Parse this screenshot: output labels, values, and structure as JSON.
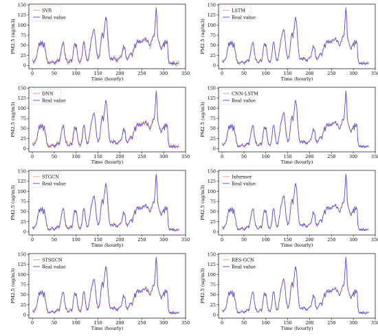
{
  "figure": {
    "xlabel": "Time (hourly)",
    "ylabel": "PM2.5 (ug/m3)",
    "x_ticks": [
      0,
      50,
      100,
      150,
      200,
      250,
      300,
      350
    ],
    "y_ticks": [
      0,
      25,
      50,
      75,
      100,
      125,
      150
    ]
  },
  "colors": {
    "real_value": "#4a3fd8",
    "prediction": "#e8917a"
  },
  "chart_data": [
    {
      "type": "line",
      "xlabel": "Time (hourly)",
      "ylabel": "PM2.5 (ug/m3)",
      "xlim": [
        -8,
        350
      ],
      "ylim": [
        -8,
        152
      ],
      "legend_position": "top-left",
      "series": [
        {
          "name": "SVR",
          "color": "#e8917a",
          "noise": 7,
          "seed": 11
        },
        {
          "name": "Real value",
          "color": "#4a3fd8",
          "base": true
        }
      ]
    },
    {
      "type": "line",
      "xlabel": "Time (hourly)",
      "ylabel": "PM2.5 (ug/m3)",
      "xlim": [
        -8,
        350
      ],
      "ylim": [
        -8,
        152
      ],
      "legend_position": "top-left",
      "series": [
        {
          "name": "LSTM",
          "color": "#e8917a",
          "noise": 4,
          "seed": 23
        },
        {
          "name": "Real value",
          "color": "#4a3fd8",
          "base": true
        }
      ]
    },
    {
      "type": "line",
      "xlabel": "Time (hourly)",
      "ylabel": "PM2.5 (ug/m3)",
      "xlim": [
        -8,
        350
      ],
      "ylim": [
        -8,
        152
      ],
      "legend_position": "top-left",
      "series": [
        {
          "name": "DNN",
          "color": "#e8917a",
          "noise": 6,
          "seed": 37
        },
        {
          "name": "Real value",
          "color": "#4a3fd8",
          "base": true
        }
      ]
    },
    {
      "type": "line",
      "xlabel": "Time (hourly)",
      "ylabel": "PM2.5 (ug/m3)",
      "xlim": [
        -8,
        350
      ],
      "ylim": [
        -8,
        152
      ],
      "legend_position": "top-left",
      "series": [
        {
          "name": "CNN-LSTM",
          "color": "#e8917a",
          "noise": 4,
          "seed": 41
        },
        {
          "name": "Real value",
          "color": "#4a3fd8",
          "base": true
        }
      ]
    },
    {
      "type": "line",
      "xlabel": "Time (hourly)",
      "ylabel": "PM2.5 (ug/m3)",
      "xlim": [
        -8,
        350
      ],
      "ylim": [
        -8,
        152
      ],
      "legend_position": "top-left",
      "series": [
        {
          "name": "STGCN",
          "color": "#e8917a",
          "noise": 4,
          "seed": 53
        },
        {
          "name": "Real value",
          "color": "#4a3fd8",
          "base": true
        }
      ]
    },
    {
      "type": "line",
      "xlabel": "Time (hourly)",
      "ylabel": "PM2.5 (ug/m3)",
      "xlim": [
        -8,
        350
      ],
      "ylim": [
        -8,
        152
      ],
      "legend_position": "top-left",
      "series": [
        {
          "name": "Ixformer",
          "color": "#e8917a",
          "noise": 3,
          "seed": 67
        },
        {
          "name": "Real value",
          "color": "#4a3fd8",
          "base": true
        }
      ]
    },
    {
      "type": "line",
      "xlabel": "Time (hourly)",
      "ylabel": "PM2.5 (ug/m3)",
      "xlim": [
        -8,
        350
      ],
      "ylim": [
        -8,
        152
      ],
      "legend_position": "top-left",
      "series": [
        {
          "name": "STSGCN",
          "color": "#e8917a",
          "noise": 4,
          "seed": 71
        },
        {
          "name": "Real value",
          "color": "#4a3fd8",
          "base": true
        }
      ]
    },
    {
      "type": "line",
      "xlabel": "Time (hourly)",
      "ylabel": "PM2.5 (ug/m3)",
      "xlim": [
        -8,
        350
      ],
      "ylim": [
        -8,
        152
      ],
      "legend_position": "top-left",
      "series": [
        {
          "name": "RES-GCN",
          "color": "#e8917a",
          "noise": 2.5,
          "seed": 83
        },
        {
          "name": "Real value",
          "color": "#4a3fd8",
          "base": true
        }
      ]
    }
  ],
  "real_value_keypoints": [
    [
      0,
      12
    ],
    [
      3,
      8
    ],
    [
      6,
      14
    ],
    [
      9,
      18
    ],
    [
      11,
      30
    ],
    [
      13,
      42
    ],
    [
      15,
      55
    ],
    [
      17,
      50
    ],
    [
      19,
      58
    ],
    [
      21,
      52
    ],
    [
      23,
      60
    ],
    [
      25,
      45
    ],
    [
      27,
      55
    ],
    [
      29,
      40
    ],
    [
      31,
      30
    ],
    [
      33,
      15
    ],
    [
      35,
      8
    ],
    [
      38,
      5
    ],
    [
      42,
      7
    ],
    [
      46,
      10
    ],
    [
      50,
      5
    ],
    [
      54,
      9
    ],
    [
      58,
      14
    ],
    [
      61,
      10
    ],
    [
      64,
      25
    ],
    [
      66,
      40
    ],
    [
      68,
      50
    ],
    [
      70,
      58
    ],
    [
      72,
      52
    ],
    [
      74,
      30
    ],
    [
      76,
      18
    ],
    [
      79,
      12
    ],
    [
      82,
      6
    ],
    [
      85,
      10
    ],
    [
      88,
      15
    ],
    [
      90,
      8
    ],
    [
      92,
      22
    ],
    [
      94,
      38
    ],
    [
      96,
      55
    ],
    [
      98,
      48
    ],
    [
      100,
      52
    ],
    [
      102,
      40
    ],
    [
      104,
      20
    ],
    [
      106,
      12
    ],
    [
      109,
      8
    ],
    [
      112,
      15
    ],
    [
      114,
      30
    ],
    [
      116,
      52
    ],
    [
      118,
      60
    ],
    [
      120,
      45
    ],
    [
      122,
      25
    ],
    [
      124,
      15
    ],
    [
      127,
      12
    ],
    [
      130,
      30
    ],
    [
      132,
      45
    ],
    [
      134,
      62
    ],
    [
      136,
      70
    ],
    [
      138,
      80
    ],
    [
      140,
      90
    ],
    [
      142,
      85
    ],
    [
      144,
      65
    ],
    [
      146,
      40
    ],
    [
      148,
      25
    ],
    [
      150,
      18
    ],
    [
      153,
      22
    ],
    [
      156,
      50
    ],
    [
      158,
      75
    ],
    [
      160,
      80
    ],
    [
      162,
      70
    ],
    [
      164,
      85
    ],
    [
      166,
      108
    ],
    [
      168,
      120
    ],
    [
      170,
      110
    ],
    [
      172,
      75
    ],
    [
      174,
      45
    ],
    [
      176,
      25
    ],
    [
      178,
      15
    ],
    [
      181,
      18
    ],
    [
      184,
      15
    ],
    [
      187,
      20
    ],
    [
      190,
      15
    ],
    [
      194,
      12
    ],
    [
      198,
      18
    ],
    [
      201,
      20
    ],
    [
      204,
      25
    ],
    [
      206,
      38
    ],
    [
      208,
      48
    ],
    [
      210,
      45
    ],
    [
      212,
      40
    ],
    [
      214,
      20
    ],
    [
      217,
      15
    ],
    [
      220,
      20
    ],
    [
      223,
      28
    ],
    [
      226,
      30
    ],
    [
      228,
      24
    ],
    [
      231,
      40
    ],
    [
      234,
      52
    ],
    [
      236,
      45
    ],
    [
      238,
      58
    ],
    [
      240,
      62
    ],
    [
      242,
      55
    ],
    [
      244,
      62
    ],
    [
      246,
      55
    ],
    [
      248,
      60
    ],
    [
      250,
      58
    ],
    [
      252,
      62
    ],
    [
      254,
      65
    ],
    [
      256,
      60
    ],
    [
      258,
      68
    ],
    [
      260,
      65
    ],
    [
      262,
      58
    ],
    [
      264,
      62
    ],
    [
      266,
      55
    ],
    [
      268,
      48
    ],
    [
      270,
      52
    ],
    [
      272,
      60
    ],
    [
      274,
      65
    ],
    [
      276,
      75
    ],
    [
      278,
      70
    ],
    [
      280,
      95
    ],
    [
      282,
      130
    ],
    [
      283,
      145
    ],
    [
      285,
      110
    ],
    [
      286,
      75
    ],
    [
      288,
      62
    ],
    [
      290,
      55
    ],
    [
      292,
      48
    ],
    [
      294,
      40
    ],
    [
      296,
      45
    ],
    [
      298,
      50
    ],
    [
      300,
      55
    ],
    [
      302,
      48
    ],
    [
      303,
      62
    ],
    [
      305,
      55
    ],
    [
      307,
      60
    ],
    [
      309,
      52
    ],
    [
      310,
      20
    ],
    [
      312,
      8
    ],
    [
      314,
      5
    ],
    [
      317,
      6
    ],
    [
      320,
      4
    ],
    [
      323,
      7
    ],
    [
      326,
      3
    ],
    [
      329,
      5
    ],
    [
      332,
      6
    ],
    [
      335,
      4
    ]
  ]
}
